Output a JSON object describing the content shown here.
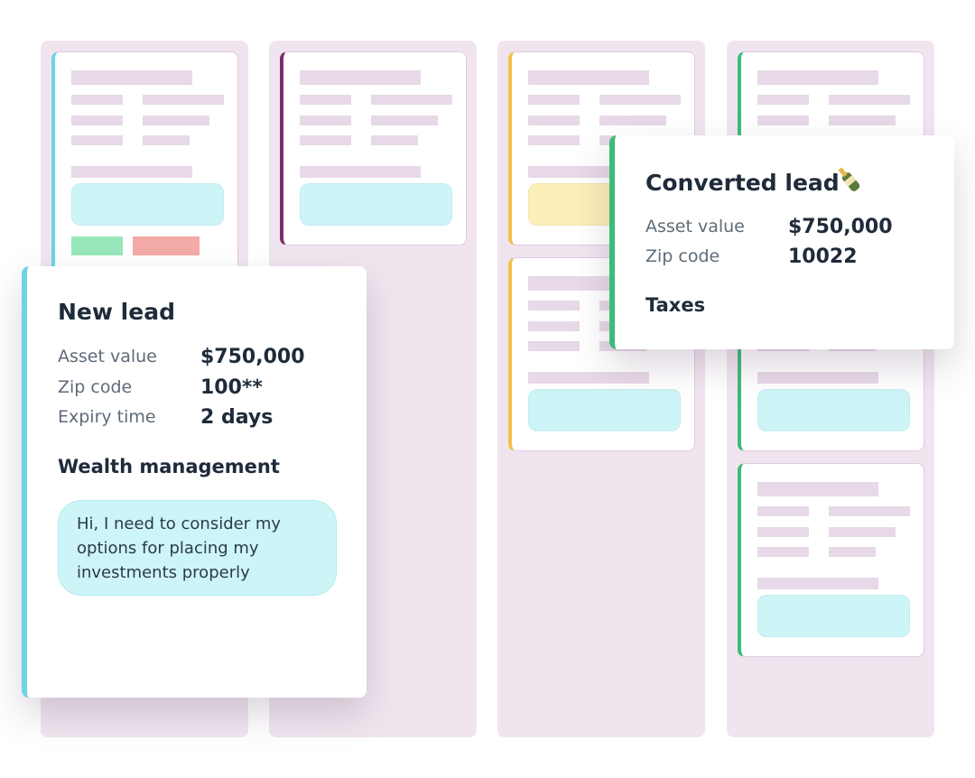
{
  "new_lead": {
    "title": "New lead",
    "fields": [
      {
        "label": "Asset value",
        "value": "$750,000"
      },
      {
        "label": "Zip code",
        "value": "100**"
      },
      {
        "label": "Expiry time",
        "value": "2 days"
      }
    ],
    "category": "Wealth management",
    "message": "Hi, I need to consider my options for placing my investments properly"
  },
  "converted_lead": {
    "title": "Converted lead",
    "fields": [
      {
        "label": "Asset value",
        "value": "$750,000"
      },
      {
        "label": "Zip code",
        "value": "10022"
      }
    ],
    "category": "Taxes"
  }
}
